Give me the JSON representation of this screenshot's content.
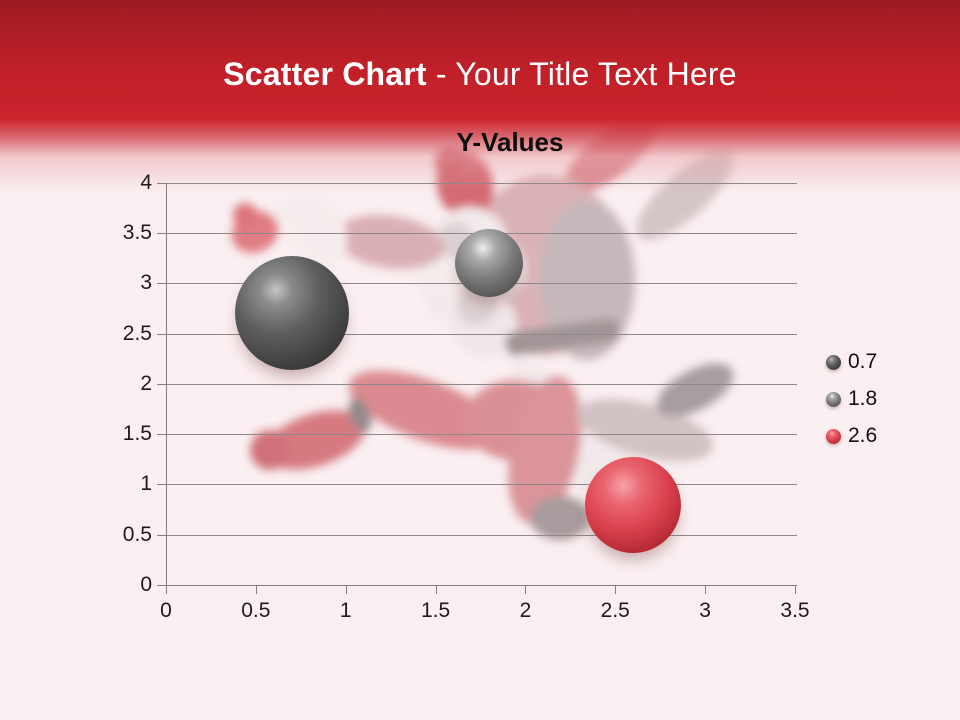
{
  "slide": {
    "header_title": {
      "bold": "Scatter Chart",
      "rest": " - Your Title Text Here"
    },
    "background_watermark": "faded photo of a jumping Santa Claus"
  },
  "colors": {
    "header_top": "#9b1b22",
    "header_red": "#cb242d",
    "title_text": "#ffffff",
    "slide_background": "#faeff1",
    "grid_line": "#8e888b",
    "tick_label": "#1c1c1c",
    "bubble_darkgray": "#4f4f4f",
    "bubble_gray": "#7b7b7b",
    "bubble_red": "#d9414d"
  },
  "chart_data": {
    "type": "scatter",
    "title": "Y-Values",
    "xlabel": "",
    "ylabel": "",
    "xlim": [
      0,
      3.5
    ],
    "ylim": [
      0,
      4
    ],
    "x_ticks": [
      0,
      0.5,
      1,
      1.5,
      2,
      2.5,
      3,
      3.5
    ],
    "y_ticks": [
      0,
      0.5,
      1,
      1.5,
      2,
      2.5,
      3,
      3.5,
      4
    ],
    "grid": "horizontal",
    "legend_position": "right",
    "series": [
      {
        "name": "0.7",
        "color_key": "darkgray",
        "color": "#4f4f4f",
        "points": [
          {
            "x": 0.7,
            "y": 2.7
          }
        ],
        "bubble_radius_px": 57
      },
      {
        "name": "1.8",
        "color_key": "gray",
        "color": "#7b7b7b",
        "points": [
          {
            "x": 1.8,
            "y": 3.2
          }
        ],
        "bubble_radius_px": 34
      },
      {
        "name": "2.6",
        "color_key": "red",
        "color": "#d9414d",
        "points": [
          {
            "x": 2.6,
            "y": 0.8
          }
        ],
        "bubble_radius_px": 48
      }
    ]
  }
}
